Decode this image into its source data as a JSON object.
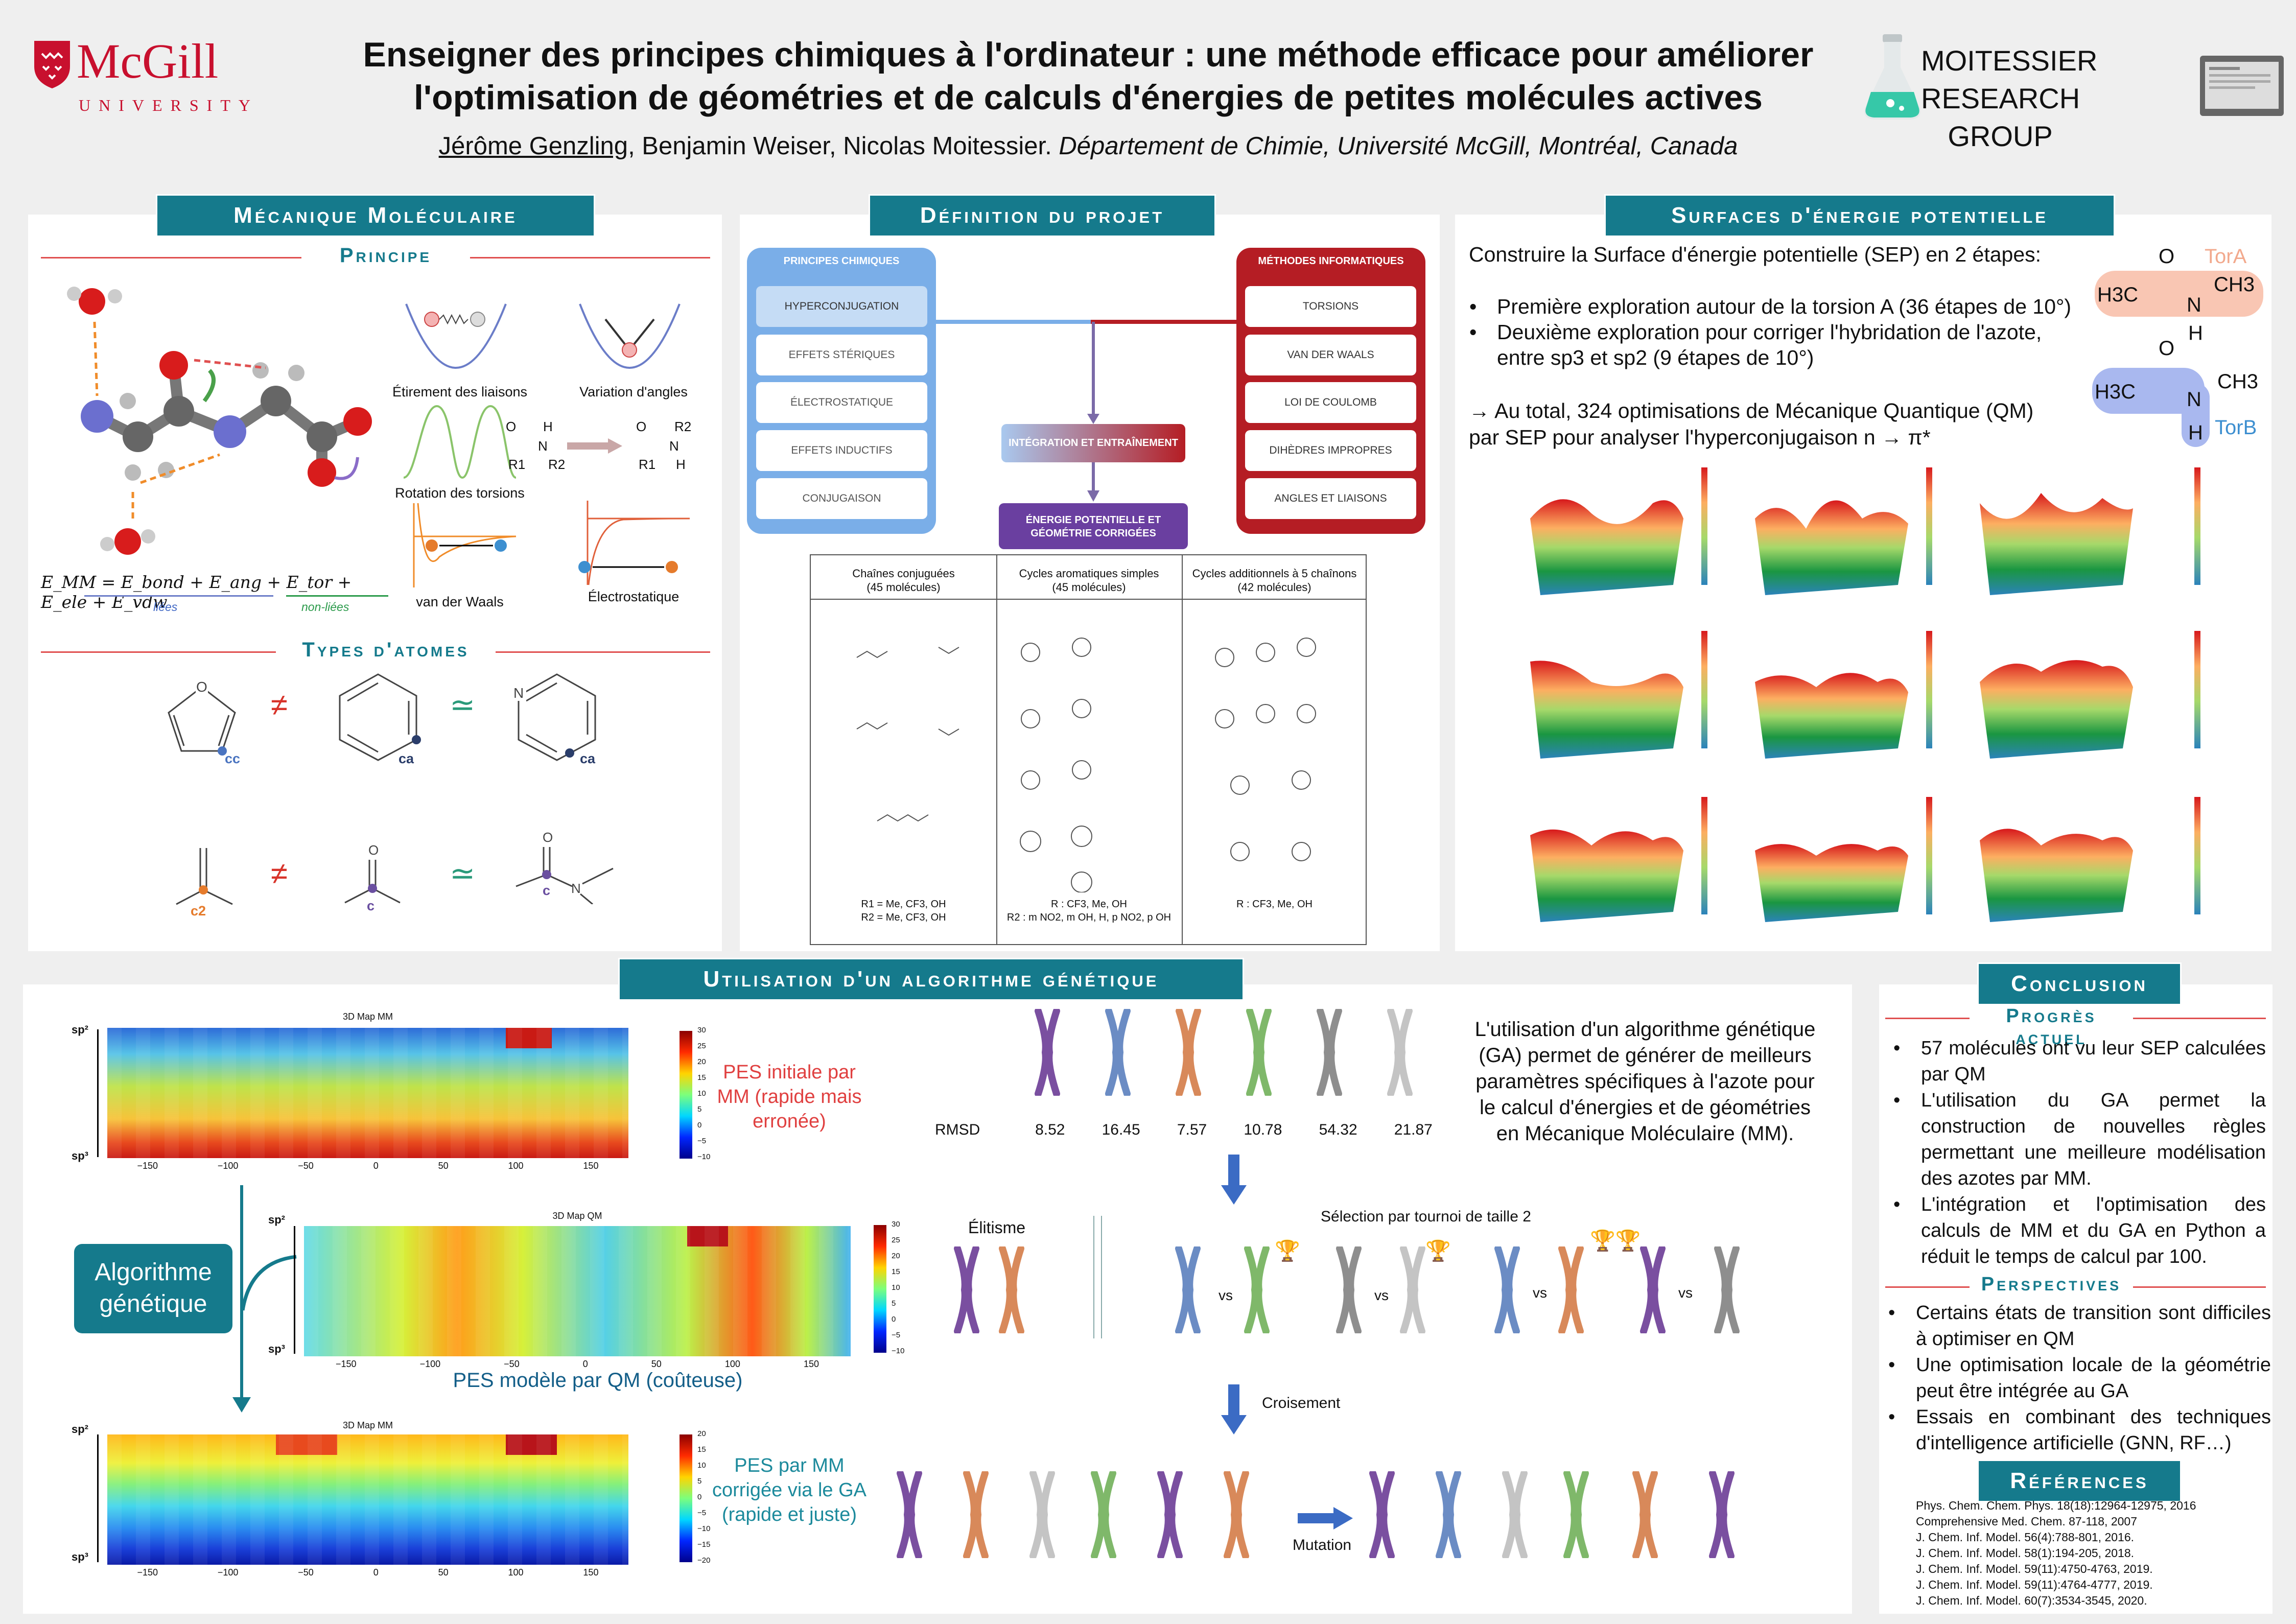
{
  "header": {
    "logo_text": "McGill",
    "logo_sub": "UNIVERSITY",
    "title_line1": "Enseigner des principes chimiques à l'ordinateur : une méthode efficace pour améliorer",
    "title_line2": "l'optimisation de géométries et de calculs d'énergies de petites molécules actives",
    "author_main": "Jérôme Genzling",
    "authors_rest": ", Benjamin Weiser, Nicolas Moitessier. ",
    "affiliation": "Département de Chimie, Université McGill, Montréal, Canada",
    "group_line1": "MOITESSIER",
    "group_line2": "RESEARCH GROUP"
  },
  "meca": {
    "title": "Mécanique Moléculaire",
    "principe": "Principe",
    "label_stretch": "Étirement des liaisons",
    "label_angles": "Variation d'angles",
    "label_torsions": "Rotation des torsions",
    "label_vdw": "van der Waals",
    "label_elec": "Électrostatique",
    "equation": "E_MM = E_bond + E_ang + E_tor + E_ele + E_vdw",
    "eq_lies": "liées",
    "eq_nonlies": "non-liées",
    "types": "Types d'atomes",
    "neq": "≠",
    "approx": "≃",
    "atom_cc": "cc",
    "atom_ca1": "ca",
    "atom_ca2": "ca",
    "atom_c2": "c2",
    "atom_c1": "c",
    "atom_c3": "c",
    "r1": "R1",
    "r2": "R2",
    "n": "N",
    "h": "H",
    "o": "O"
  },
  "projet": {
    "title": "Définition du projet",
    "left_header": "PRINCIPES CHIMIQUES",
    "left_items": [
      "HYPERCONJUGATION",
      "EFFETS STÉRIQUES",
      "ÉLECTROSTATIQUE",
      "EFFETS INDUCTIFS",
      "CONJUGAISON"
    ],
    "right_header": "MÉTHODES INFORMATIQUES",
    "right_items": [
      "TORSIONS",
      "VAN DER WAALS",
      "LOI DE COULOMB",
      "DIHÈDRES IMPROPRES",
      "ANGLES ET LIAISONS"
    ],
    "center_box": "INTÉGRATION ET ENTRAÎNEMENT",
    "result_box_line1": "ÉNERGIE POTENTIELLE ET",
    "result_box_line2": "GÉOMÉTRIE CORRIGÉES",
    "table_headers": [
      "Chaînes conjuguées\n(45 molécules)",
      "Cycles aromatiques simples\n(45 molécules)",
      "Cycles additionnels à 5 chaînons\n(42 molécules)"
    ],
    "col1_foot1": "R1 = Me, CF3, OH",
    "col1_foot2": "R2 = Me, CF3, OH",
    "col2_foot1": "R : CF3, Me, OH",
    "col2_foot2": "R2 : m NO2, m OH, H, p NO2, p OH",
    "col3_foot1": "R : CF3, Me, OH"
  },
  "sep": {
    "title": "Surfaces d'énergie potentielle",
    "intro": "Construire la Surface d'énergie potentielle (SEP) en 2 étapes:",
    "bullet1": "Première exploration autour de la torsion A (36 étapes de 10°)",
    "bullet2a": "Deuxième exploration pour corriger l'hybridation de l'azote,",
    "bullet2b": "entre sp3 et sp2 (9 étapes de 10°)",
    "total1": "→ Au total, 324 optimisations de Mécanique Quantique (QM)",
    "total2": "par SEP pour analyser l'hyperconjugaison n → π*",
    "tora": "TorA",
    "torb": "TorB",
    "h3c": "H3C",
    "ch3": "CH3",
    "n": "N",
    "h": "H",
    "o": "O"
  },
  "ga": {
    "title": "Utilisation d'un algorithme génétique",
    "map_title_mm": "3D Map MM",
    "map_title_qm": "3D Map QM",
    "y_top": "sp²",
    "y_bot": "sp³",
    "x_ticks": [
      "−150",
      "−100",
      "−50",
      "0",
      "50",
      "100",
      "150"
    ],
    "cb_ticks_1": [
      "30",
      "25",
      "20",
      "15",
      "10",
      "5",
      "0",
      "−5",
      "−10"
    ],
    "cb_ticks_3": [
      "20",
      "15",
      "10",
      "5",
      "0",
      "−5",
      "−10",
      "−15",
      "−20"
    ],
    "label_initial": "PES initiale par MM (rapide mais erronée)",
    "label_qm": "PES modèle par QM (coûteuse)",
    "label_corr": "PES par MM corrigée via le GA (rapide et juste)",
    "algo_box": "Algorithme génétique",
    "rmsd_label": "RMSD",
    "rmsd_values": [
      "8.52",
      "16.45",
      "7.57",
      "10.78",
      "54.32",
      "21.87"
    ],
    "ga_text": "L'utilisation d'un algorithme génétique (GA) permet de générer de meilleurs paramètres spécifiques à l'azote pour le calcul d'énergies et de géométries en Mécanique Moléculaire (MM).",
    "elitisme": "Élitisme",
    "selection": "Sélection par tournoi de taille 2",
    "vs": "vs",
    "croisement": "Croisement",
    "mutation": "Mutation",
    "colors": {
      "purple": "#7a4fa0",
      "blue": "#6b8cc4",
      "orange": "#d8895a",
      "green": "#7fb86a",
      "grey1": "#8e8e8e",
      "grey2": "#c4c4c4"
    }
  },
  "conclusion": {
    "title": "Conclusion",
    "progres": "Progrès actuel",
    "items": [
      "57 molécules ont vu leur SEP calculées par QM",
      "L'utilisation du GA permet la construction de nouvelles règles permettant une meilleure modélisation des azotes par MM.",
      "L'intégration et l'optimisation des calculs de MM et du GA en Python a réduit le temps de calcul par 100."
    ],
    "perspectives": "Perspectives",
    "persp_items": [
      "Certains états de transition sont difficiles à optimiser en QM",
      "Une optimisation locale de la géométrie peut être intégrée au GA",
      "Essais en combinant des techniques d'intelligence artificielle (GNN, RF…)"
    ],
    "refs_title": "Références",
    "refs": [
      "Phys. Chem. Chem. Phys. 18(18):12964-12975, 2016",
      "Comprehensive Med. Chem. 87-118, 2007",
      "J. Chem. Inf. Model. 56(4):788-801, 2016.",
      "J. Chem. Inf. Model. 58(1):194-205, 2018.",
      "J. Chem. Inf. Model. 59(11):4750-4763, 2019.",
      "J. Chem. Inf. Model. 59(11):4764-4777, 2019.",
      "J. Chem. Inf. Model. 60(7):3534-3545, 2020."
    ]
  },
  "colors": {
    "teal": "#157a8c",
    "red": "#c8102e",
    "blue_box": "#7aaee8",
    "red_box": "#b51d24",
    "purple_box": "#6a3fa0"
  }
}
